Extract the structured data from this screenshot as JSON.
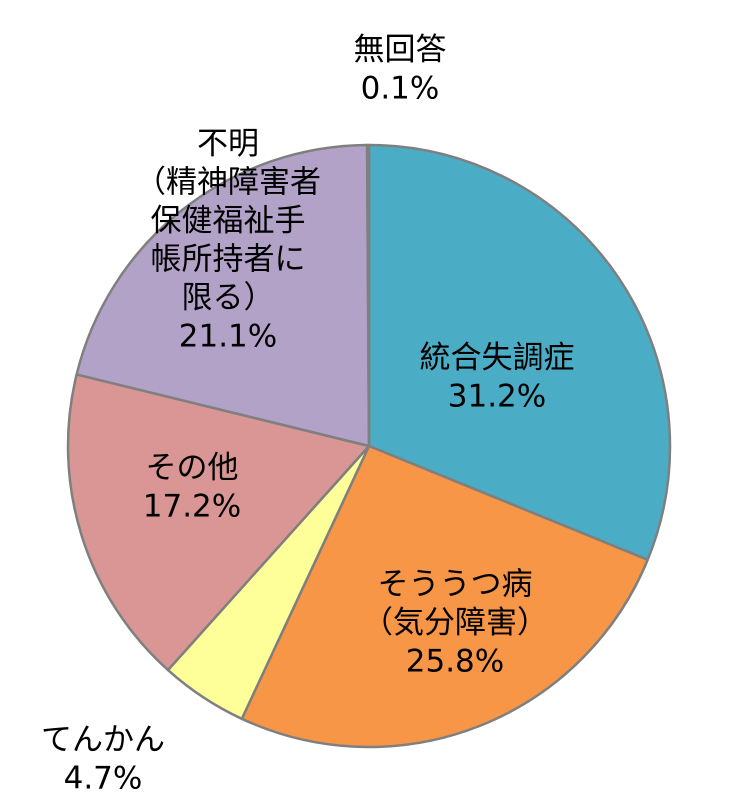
{
  "chart_data": {
    "type": "pie",
    "start_angle_deg": 0,
    "direction": "clockwise",
    "legend": "none",
    "slices": [
      {
        "label": [
          "統合失調症"
        ],
        "value": 31.2,
        "value_label": "31.2%",
        "color": "#4BACC6"
      },
      {
        "label": [
          "そううつ病",
          "（気分障害）"
        ],
        "value": 25.8,
        "value_label": "25.8%",
        "color": "#F79646"
      },
      {
        "label": [
          "てんかん"
        ],
        "value": 4.7,
        "value_label": "4.7%",
        "color": "#FFFF99"
      },
      {
        "label": [
          "その他"
        ],
        "value": 17.2,
        "value_label": "17.2%",
        "color": "#D99694"
      },
      {
        "label": [
          "不明",
          "（精神障害者",
          "保健福祉手",
          "帳所持者に",
          "限る）"
        ],
        "value": 21.1,
        "value_label": "21.1%",
        "color": "#B3A2C7"
      },
      {
        "label": [
          "無回答"
        ],
        "value": 0.1,
        "value_label": "0.1%",
        "color": "#EEECE1"
      }
    ]
  }
}
